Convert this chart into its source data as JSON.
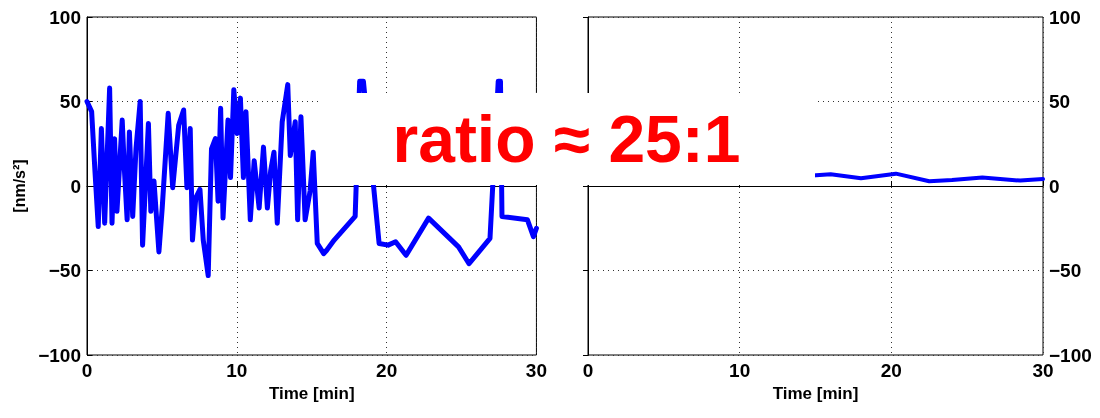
{
  "chart_data": [
    {
      "type": "line",
      "xlabel": "Time [min]",
      "ylabel": "[nm/s²]",
      "xlim": [
        0,
        30
      ],
      "xticks": [
        0,
        10,
        20,
        30
      ],
      "ylim": [
        -100,
        100
      ],
      "yticks": [
        -100,
        -50,
        0,
        50,
        100
      ],
      "grid": true,
      "annotations": [
        "ratio ≈ 25:1"
      ],
      "series": [
        {
          "color": "#0000ff",
          "x": [
            0,
            0.31,
            0.53,
            0.75,
            0.96,
            1.18,
            1.51,
            1.67,
            1.84,
            2.0,
            2.35,
            2.5,
            2.68,
            2.83,
            3.05,
            3.27,
            3.55,
            3.71,
            4.1,
            4.26,
            4.47,
            4.8,
            5.02,
            5.42,
            5.72,
            6.12,
            6.45,
            6.67,
            6.89,
            7.04,
            7.26,
            7.54,
            7.76,
            8.09,
            8.31,
            8.57,
            8.75,
            8.92,
            9.08,
            9.41,
            9.58,
            9.8,
            10.02,
            10.24,
            10.44,
            10.61,
            10.9,
            11.16,
            11.49,
            11.78,
            12.04,
            12.26,
            12.48,
            12.7,
            13.03,
            13.4,
            13.57,
            13.9,
            14.06,
            14.28,
            14.56,
            14.89,
            15.1,
            15.37,
            15.8,
            16.0,
            16.5,
            17.9,
            18.2,
            18.45,
            19.5,
            20.1,
            20.6,
            21.3,
            22.8,
            24.8,
            25.5,
            26.9,
            27.45,
            27.6,
            27.7,
            29.4,
            29.8,
            30
          ],
          "values": [
            50,
            44,
            9,
            -24,
            34,
            -22,
            58,
            -22,
            28,
            -15,
            39,
            9,
            -20,
            32,
            -18,
            22,
            50,
            -35,
            37,
            -15,
            3,
            -39,
            -13,
            43,
            -1,
            36,
            45,
            -1,
            34,
            -32,
            -7,
            -2,
            -32,
            -53,
            22,
            28,
            -9,
            46,
            -19,
            39,
            5,
            57,
            31,
            52,
            5,
            44,
            -20,
            15,
            -13,
            23,
            -13,
            9,
            20,
            -22,
            38,
            60,
            18,
            38,
            -20,
            41,
            -20,
            -3,
            20,
            -34,
            -40,
            -38,
            -32,
            -18,
            62,
            62,
            -34,
            -35,
            -33,
            -41,
            -19,
            -36,
            -46,
            -31,
            62,
            62,
            -18,
            -20,
            -30,
            -25
          ]
        }
      ]
    },
    {
      "type": "line",
      "xlabel": "Time [min]",
      "xlim": [
        0,
        30
      ],
      "xticks": [
        0,
        10,
        20,
        30
      ],
      "ylim": [
        -100,
        100
      ],
      "yticks": [
        -100,
        -50,
        0,
        50,
        100
      ],
      "grid": true,
      "series": [
        {
          "color": "#0000ff",
          "x": [
            14.8,
            16,
            18,
            20.3,
            22.5,
            24,
            26,
            28.5,
            30
          ],
          "values": [
            6.2,
            7,
            4.6,
            7.3,
            2.8,
            3.5,
            5,
            3.2,
            4.2
          ]
        }
      ]
    }
  ]
}
